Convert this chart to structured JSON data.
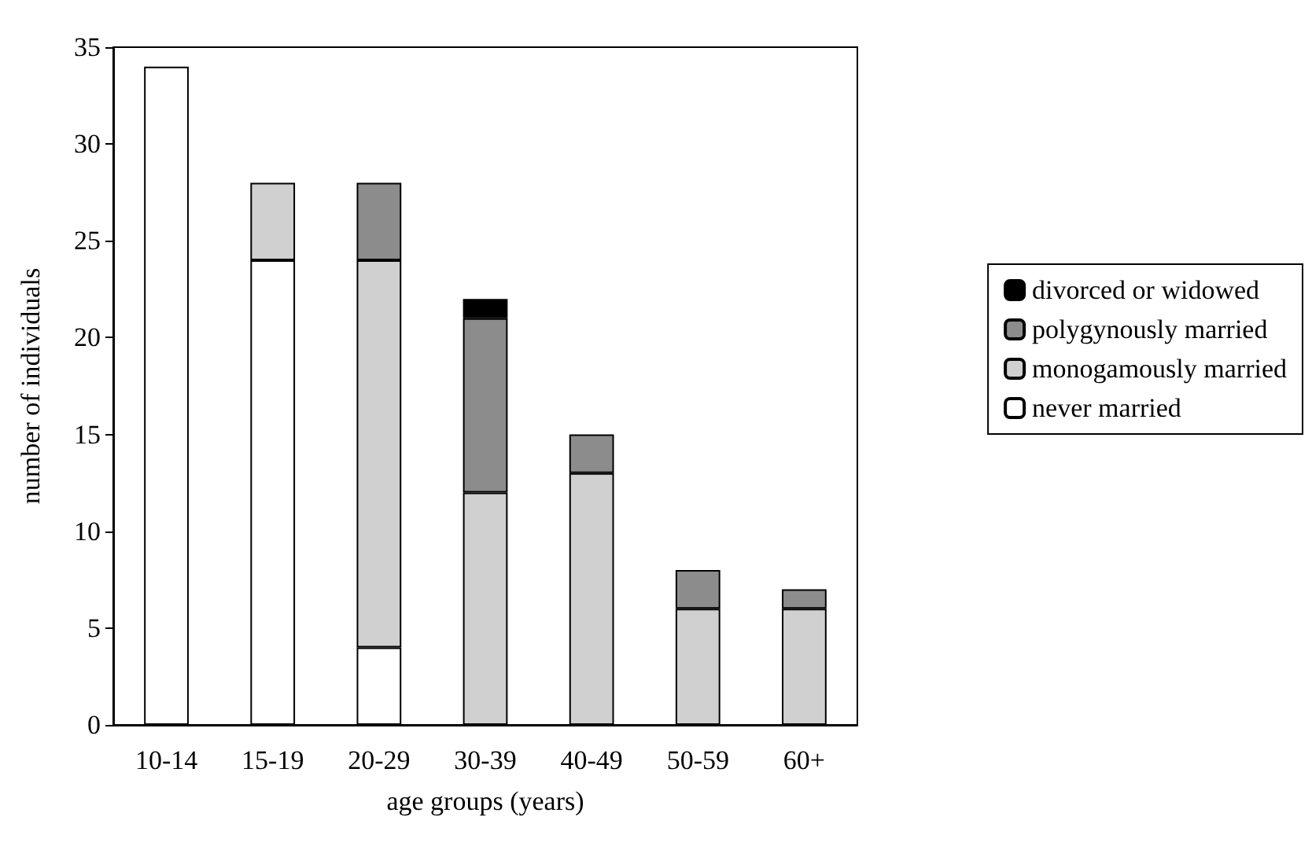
{
  "chart_data": {
    "type": "bar",
    "stacked": true,
    "xlabel": "age groups (years)",
    "ylabel": "number of individuals",
    "categories": [
      "10-14",
      "15-19",
      "20-29",
      "30-39",
      "40-49",
      "50-59",
      "60+"
    ],
    "series": [
      {
        "name": "never married",
        "color": "#ffffff",
        "values": [
          34,
          24,
          4,
          null,
          null,
          null,
          null
        ]
      },
      {
        "name": "monogamously married",
        "color": "#d0d0d0",
        "values": [
          null,
          4,
          20,
          12,
          13,
          6,
          6
        ]
      },
      {
        "name": "polygynously married",
        "color": "#8c8c8c",
        "values": [
          null,
          null,
          4,
          9,
          2,
          2,
          1
        ]
      },
      {
        "name": "divorced or widowed",
        "color": "#000000",
        "values": [
          null,
          null,
          null,
          1,
          null,
          null,
          null
        ]
      }
    ],
    "ylim": [
      0,
      35
    ],
    "yticks": [
      0,
      5,
      10,
      15,
      20,
      25,
      30,
      35
    ],
    "grid": false,
    "legend": "right"
  }
}
